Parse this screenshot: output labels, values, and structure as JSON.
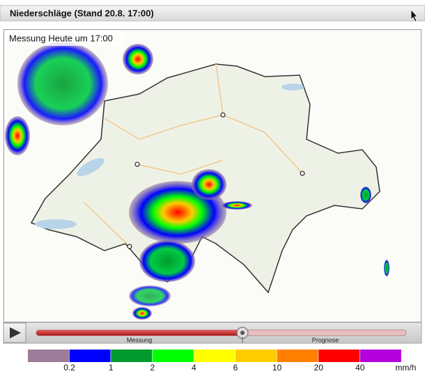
{
  "header": {
    "title": "Niederschläge (Stand 20.8. 17:00)"
  },
  "map": {
    "overlay_label": "Messung Heute um 17:00"
  },
  "timeline": {
    "past_label": "Messung",
    "future_label": "Prognose"
  },
  "legend": {
    "colors": [
      "#9c7c99",
      "#0000ff",
      "#009a2e",
      "#00ff00",
      "#ffff00",
      "#ffcc00",
      "#ff8000",
      "#ff0000",
      "#b400dc"
    ],
    "labels": [
      "0.2",
      "1",
      "2",
      "4",
      "6",
      "10",
      "20",
      "40"
    ],
    "unit": "mm/h"
  }
}
